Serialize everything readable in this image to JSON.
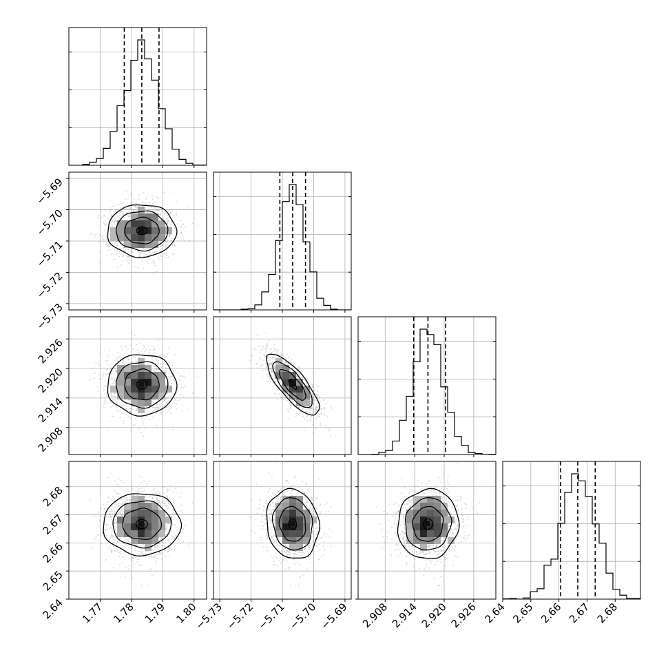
{
  "chart_data": {
    "type": "corner",
    "n_params": 4,
    "grid": true,
    "axis_labels": [
      "",
      "",
      "",
      ""
    ],
    "params": [
      {
        "range": [
          1.76,
          1.804
        ],
        "ticks": [
          1.77,
          1.78,
          1.79,
          1.8
        ],
        "tick_labels": [
          "1.77",
          "1.78",
          "1.79",
          "1.80"
        ],
        "median": 1.7833,
        "q16": 1.7777,
        "q84": 1.7888,
        "sigma": 0.0055,
        "hist_ticks": 3
      },
      {
        "range": [
          -5.732,
          -5.688
        ],
        "ticks": [
          -5.73,
          -5.72,
          -5.71,
          -5.7,
          -5.69
        ],
        "tick_labels": [
          "−5.73",
          "−5.72",
          "−5.71",
          "−5.70",
          "−5.69"
        ],
        "median": -5.7067,
        "q16": -5.7108,
        "q84": -5.7026,
        "sigma": 0.0042,
        "hist_ticks": 3
      },
      {
        "range": [
          2.9025,
          2.9305
        ],
        "ticks": [
          2.908,
          2.914,
          2.92,
          2.926
        ],
        "tick_labels": [
          "2.908",
          "2.914",
          "2.920",
          "2.926"
        ],
        "median": 2.9167,
        "q16": 2.9138,
        "q84": 2.9203,
        "sigma": 0.0031,
        "hist_ticks": 3
      },
      {
        "range": [
          2.64,
          2.689
        ],
        "ticks": [
          2.64,
          2.65,
          2.66,
          2.67,
          2.68
        ],
        "tick_labels": [
          "2.64",
          "2.65",
          "2.66",
          "2.67",
          "2.68"
        ],
        "median": 2.6667,
        "q16": 2.6606,
        "q84": 2.6729,
        "sigma": 0.0062,
        "hist_ticks": 3
      }
    ],
    "correlations": [
      [
        1,
        0,
        0,
        0
      ],
      [
        0,
        1,
        -0.78,
        -0.1
      ],
      [
        0,
        -0.78,
        1,
        0.05
      ],
      [
        0,
        -0.1,
        0.05,
        1
      ]
    ]
  }
}
